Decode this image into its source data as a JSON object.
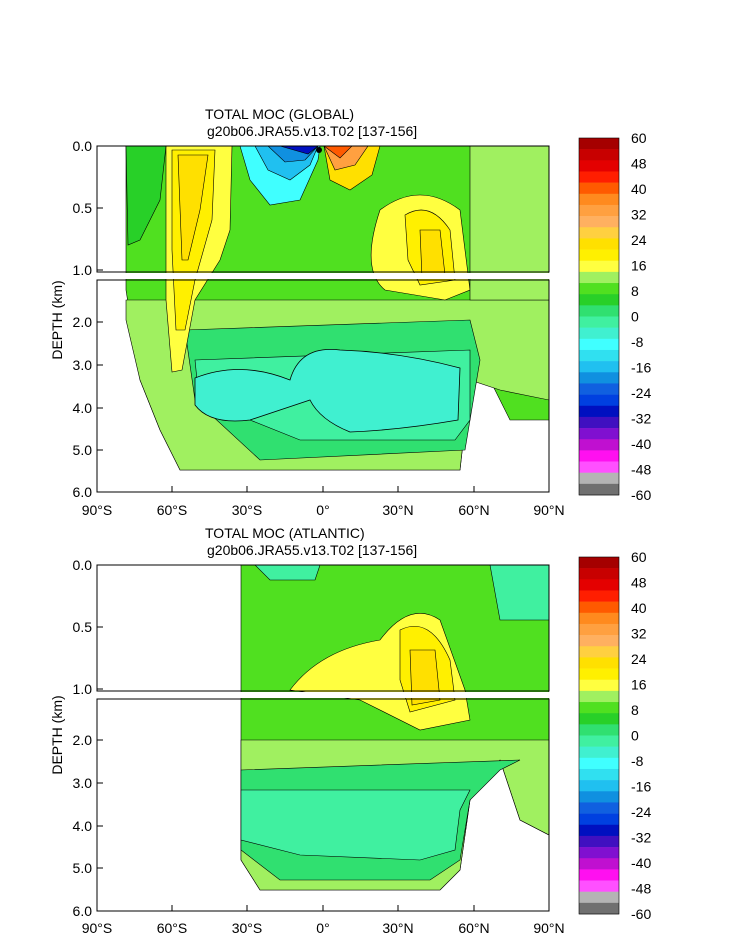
{
  "chart_data": [
    {
      "type": "heatmap",
      "title": "TOTAL MOC (GLOBAL)",
      "subtitle": "g20b06.JRA55.v13.T02 [137-156]",
      "ylabel": "DEPTH (km)",
      "xlabel": "",
      "x_ticks": [
        "90°S",
        "60°S",
        "30°S",
        "0°",
        "30°N",
        "60°N",
        "90°N"
      ],
      "y_ticks_upper": [
        "0.0",
        "0.5",
        "1.0"
      ],
      "y_ticks_lower": [
        "2.0",
        "3.0",
        "4.0",
        "5.0",
        "6.0"
      ],
      "xlim": [
        -90,
        90
      ],
      "ylim_upper": [
        0,
        1.0
      ],
      "ylim_lower": [
        1.0,
        6.0
      ],
      "grid": false,
      "legend": "colorbar-right"
    },
    {
      "type": "heatmap",
      "title": "TOTAL MOC (ATLANTIC)",
      "subtitle": "g20b06.JRA55.v13.T02 [137-156]",
      "ylabel": "DEPTH (km)",
      "xlabel": "",
      "x_ticks": [
        "90°S",
        "60°S",
        "30°S",
        "0°",
        "30°N",
        "60°N",
        "90°N"
      ],
      "y_ticks_upper": [
        "0.0",
        "0.5",
        "1.0"
      ],
      "y_ticks_lower": [
        "2.0",
        "3.0",
        "4.0",
        "5.0",
        "6.0"
      ],
      "xlim": [
        -90,
        90
      ],
      "ylim_upper": [
        0,
        1.0
      ],
      "ylim_lower": [
        1.0,
        6.0
      ],
      "grid": false,
      "legend": "colorbar-right"
    }
  ],
  "colorbar": {
    "labels": [
      "60",
      "48",
      "40",
      "32",
      "24",
      "16",
      "8",
      "0",
      "-8",
      "-16",
      "-24",
      "-32",
      "-40",
      "-48",
      "-60"
    ],
    "colors": [
      "#a50000",
      "#c80000",
      "#e40000",
      "#ff1e00",
      "#ff5a00",
      "#ff8a1e",
      "#ffa040",
      "#ffb060",
      "#ffd040",
      "#ffe000",
      "#fff000",
      "#ffff40",
      "#a0f060",
      "#50e020",
      "#28d028",
      "#30e070",
      "#40f0a0",
      "#40f0d0",
      "#40ffff",
      "#30e0f0",
      "#20c0f0",
      "#1090e0",
      "#1060e0",
      "#0040e0",
      "#0010c0",
      "#4010c0",
      "#8010d0",
      "#c010d0",
      "#ff10f0",
      "#ff50ff",
      "#b4b4b4",
      "#707070"
    ]
  }
}
